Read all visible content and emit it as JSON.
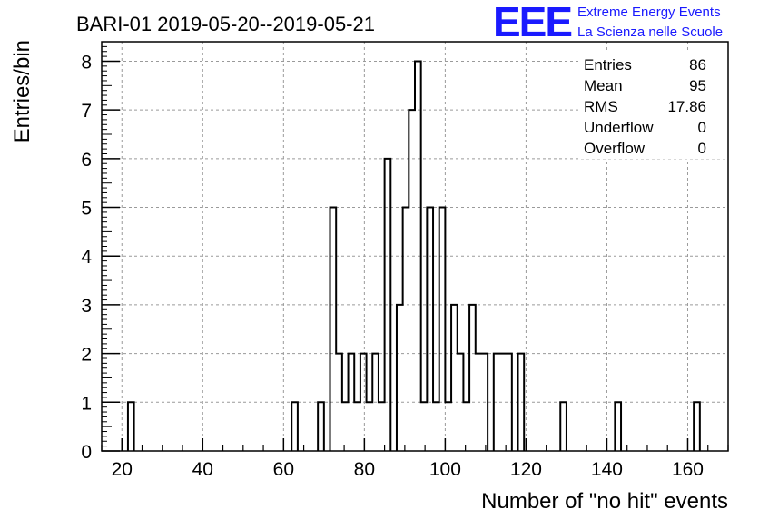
{
  "title": "BARI-01 2019-05-20--2019-05-21",
  "logo": {
    "mark": "EEE",
    "line1": "Extreme Energy Events",
    "line2": "La Scienza nelle Scuole",
    "color": "#1a1aff"
  },
  "stats": [
    {
      "label": "Entries",
      "value": "86"
    },
    {
      "label": "Mean",
      "value": "95"
    },
    {
      "label": "RMS",
      "value": "17.86"
    },
    {
      "label": "Underflow",
      "value": "0"
    },
    {
      "label": "Overflow",
      "value": "0"
    }
  ],
  "chart_data": {
    "type": "bar",
    "style": "step histogram",
    "title": "BARI-01 2019-05-20--2019-05-21",
    "xlabel": "Number of \"no hit\" events",
    "ylabel": "Entries/bin",
    "xlim": [
      15,
      170
    ],
    "ylim": [
      0,
      8.4
    ],
    "bin_width": 1.5,
    "x_ticks": [
      20,
      40,
      60,
      80,
      100,
      120,
      140,
      160
    ],
    "y_ticks": [
      0,
      1,
      2,
      3,
      4,
      5,
      6,
      7,
      8
    ],
    "grid": true,
    "line_color": "#000000",
    "bins": [
      {
        "x0": 21.5,
        "x1": 23.0,
        "count": 1
      },
      {
        "x0": 62.0,
        "x1": 63.5,
        "count": 1
      },
      {
        "x0": 68.5,
        "x1": 70.0,
        "count": 1
      },
      {
        "x0": 71.5,
        "x1": 73.0,
        "count": 5
      },
      {
        "x0": 73.0,
        "x1": 74.5,
        "count": 2
      },
      {
        "x0": 74.5,
        "x1": 76.0,
        "count": 1
      },
      {
        "x0": 76.0,
        "x1": 77.5,
        "count": 2
      },
      {
        "x0": 77.5,
        "x1": 79.0,
        "count": 1
      },
      {
        "x0": 79.0,
        "x1": 80.5,
        "count": 2
      },
      {
        "x0": 80.5,
        "x1": 82.0,
        "count": 1
      },
      {
        "x0": 82.0,
        "x1": 83.5,
        "count": 2
      },
      {
        "x0": 83.5,
        "x1": 85.0,
        "count": 1
      },
      {
        "x0": 85.0,
        "x1": 86.5,
        "count": 6
      },
      {
        "x0": 88.0,
        "x1": 89.5,
        "count": 3
      },
      {
        "x0": 89.5,
        "x1": 91.0,
        "count": 5
      },
      {
        "x0": 91.0,
        "x1": 92.5,
        "count": 7
      },
      {
        "x0": 92.5,
        "x1": 94.0,
        "count": 8
      },
      {
        "x0": 94.0,
        "x1": 95.5,
        "count": 1
      },
      {
        "x0": 95.5,
        "x1": 97.0,
        "count": 5
      },
      {
        "x0": 97.0,
        "x1": 98.5,
        "count": 1
      },
      {
        "x0": 98.5,
        "x1": 100.0,
        "count": 5
      },
      {
        "x0": 100.0,
        "x1": 101.5,
        "count": 1
      },
      {
        "x0": 101.5,
        "x1": 103.0,
        "count": 3
      },
      {
        "x0": 103.0,
        "x1": 104.5,
        "count": 2
      },
      {
        "x0": 104.5,
        "x1": 106.0,
        "count": 1
      },
      {
        "x0": 106.0,
        "x1": 107.5,
        "count": 3
      },
      {
        "x0": 107.5,
        "x1": 109.0,
        "count": 2
      },
      {
        "x0": 109.0,
        "x1": 110.5,
        "count": 2
      },
      {
        "x0": 112.0,
        "x1": 113.5,
        "count": 2
      },
      {
        "x0": 113.5,
        "x1": 115.0,
        "count": 2
      },
      {
        "x0": 115.0,
        "x1": 116.5,
        "count": 2
      },
      {
        "x0": 118.0,
        "x1": 119.5,
        "count": 2
      },
      {
        "x0": 128.5,
        "x1": 130.0,
        "count": 1
      },
      {
        "x0": 142.0,
        "x1": 143.5,
        "count": 1
      },
      {
        "x0": 161.5,
        "x1": 163.0,
        "count": 1
      }
    ]
  }
}
